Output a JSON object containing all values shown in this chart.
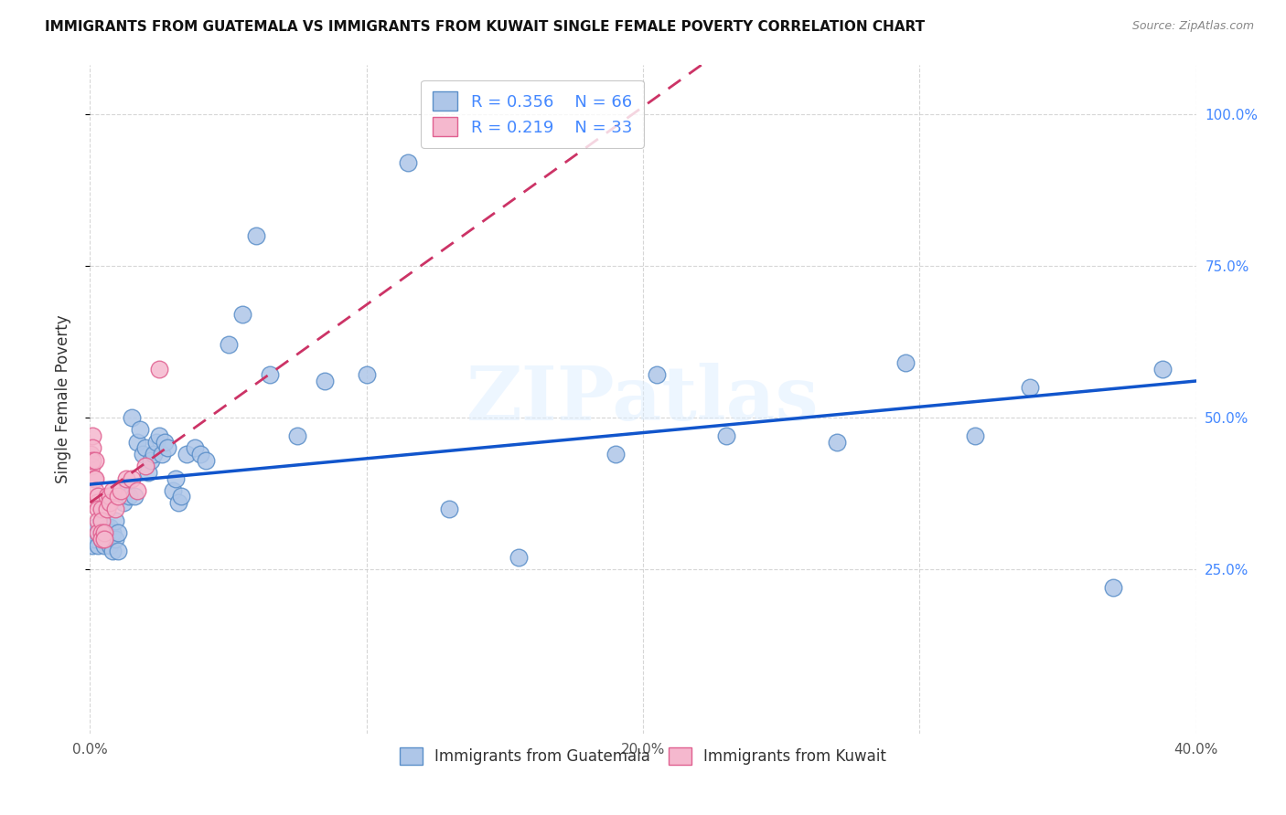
{
  "title": "IMMIGRANTS FROM GUATEMALA VS IMMIGRANTS FROM KUWAIT SINGLE FEMALE POVERTY CORRELATION CHART",
  "source": "Source: ZipAtlas.com",
  "ylabel": "Single Female Poverty",
  "xlim": [
    0.0,
    0.4
  ],
  "ylim": [
    -0.02,
    1.08
  ],
  "guatemala_color": "#aec6e8",
  "guatemala_edge": "#5b8fc9",
  "kuwait_color": "#f5b8ce",
  "kuwait_edge": "#e06090",
  "trend_guatemala_color": "#1155cc",
  "trend_kuwait_color": "#cc3366",
  "legend_R_guatemala": "0.356",
  "legend_N_guatemala": "66",
  "legend_R_kuwait": "0.219",
  "legend_N_kuwait": "33",
  "watermark": "ZIPatlas",
  "background_color": "#ffffff",
  "grid_color": "#cccccc",
  "guatemala_x": [
    0.0005,
    0.001,
    0.0015,
    0.002,
    0.002,
    0.003,
    0.003,
    0.004,
    0.004,
    0.005,
    0.005,
    0.006,
    0.006,
    0.007,
    0.007,
    0.008,
    0.008,
    0.009,
    0.009,
    0.01,
    0.01,
    0.011,
    0.012,
    0.013,
    0.014,
    0.015,
    0.016,
    0.017,
    0.018,
    0.019,
    0.02,
    0.021,
    0.022,
    0.023,
    0.024,
    0.025,
    0.026,
    0.027,
    0.028,
    0.03,
    0.031,
    0.032,
    0.033,
    0.035,
    0.038,
    0.04,
    0.042,
    0.05,
    0.055,
    0.06,
    0.065,
    0.075,
    0.085,
    0.1,
    0.115,
    0.13,
    0.155,
    0.19,
    0.205,
    0.23,
    0.27,
    0.295,
    0.32,
    0.34,
    0.37,
    0.388
  ],
  "guatemala_y": [
    0.3,
    0.29,
    0.31,
    0.3,
    0.32,
    0.29,
    0.31,
    0.3,
    0.33,
    0.29,
    0.31,
    0.3,
    0.32,
    0.29,
    0.32,
    0.28,
    0.31,
    0.3,
    0.33,
    0.28,
    0.31,
    0.37,
    0.36,
    0.38,
    0.37,
    0.5,
    0.37,
    0.46,
    0.48,
    0.44,
    0.45,
    0.41,
    0.43,
    0.44,
    0.46,
    0.47,
    0.44,
    0.46,
    0.45,
    0.38,
    0.4,
    0.36,
    0.37,
    0.44,
    0.45,
    0.44,
    0.43,
    0.62,
    0.67,
    0.8,
    0.57,
    0.47,
    0.56,
    0.57,
    0.92,
    0.35,
    0.27,
    0.44,
    0.57,
    0.47,
    0.46,
    0.59,
    0.47,
    0.55,
    0.22,
    0.58
  ],
  "kuwait_x": [
    0.0003,
    0.0005,
    0.001,
    0.001,
    0.001,
    0.0015,
    0.002,
    0.002,
    0.002,
    0.0025,
    0.003,
    0.003,
    0.003,
    0.003,
    0.004,
    0.004,
    0.004,
    0.004,
    0.005,
    0.005,
    0.006,
    0.006,
    0.007,
    0.007,
    0.008,
    0.009,
    0.01,
    0.011,
    0.013,
    0.015,
    0.017,
    0.02,
    0.025
  ],
  "kuwait_y": [
    0.44,
    0.42,
    0.47,
    0.45,
    0.43,
    0.4,
    0.43,
    0.4,
    0.38,
    0.36,
    0.37,
    0.35,
    0.33,
    0.31,
    0.35,
    0.33,
    0.31,
    0.3,
    0.31,
    0.3,
    0.37,
    0.35,
    0.37,
    0.36,
    0.38,
    0.35,
    0.37,
    0.38,
    0.4,
    0.4,
    0.38,
    0.42,
    0.58
  ]
}
